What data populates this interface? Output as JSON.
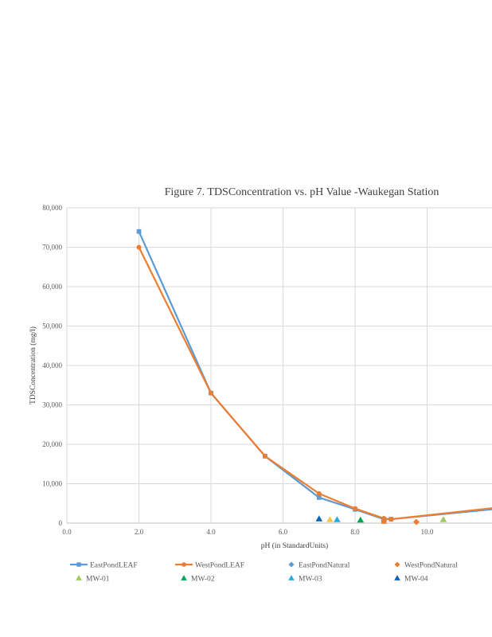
{
  "chart_data": {
    "type": "scatter",
    "title": "Figure 7. TDSConcentration  vs. pH Value -Waukegan  Station",
    "xlabel": "pH (in StandardUnits)",
    "ylabel": "TDSConcentration (mg/l)",
    "xlim": [
      0,
      11.8
    ],
    "ylim": [
      0,
      80000
    ],
    "x_ticks": [
      0,
      2,
      4,
      6,
      8,
      10
    ],
    "x_tick_labels": [
      "0.0",
      "2.0",
      "4.0",
      "6.0",
      "8.0",
      "10.0"
    ],
    "y_ticks": [
      0,
      10000,
      20000,
      30000,
      40000,
      50000,
      60000,
      70000,
      80000
    ],
    "y_tick_labels": [
      "0",
      "10,000",
      "20,000",
      "30,000",
      "40,000",
      "50,000",
      "60,000",
      "70,000",
      "80,000"
    ],
    "grid": true,
    "legend_position": "bottom",
    "series": [
      {
        "name": "EastPondLEAF",
        "style": "line-square",
        "color": "#5B9BD5",
        "points": [
          [
            2.0,
            74000
          ],
          [
            4.0,
            33000
          ],
          [
            5.5,
            17000
          ],
          [
            7.0,
            6500
          ],
          [
            8.0,
            3500
          ],
          [
            8.8,
            1000
          ],
          [
            9.0,
            1000
          ],
          [
            11.8,
            3500
          ]
        ]
      },
      {
        "name": "WestPondLEAF",
        "style": "line-circle",
        "color": "#ED7D31",
        "points": [
          [
            2.0,
            70000
          ],
          [
            4.0,
            33000
          ],
          [
            5.5,
            17000
          ],
          [
            7.0,
            7500
          ],
          [
            8.0,
            3700
          ],
          [
            8.8,
            1200
          ],
          [
            9.0,
            1000
          ],
          [
            11.8,
            3800
          ]
        ]
      },
      {
        "name": "EastPondNatural",
        "style": "diamond",
        "color": "#5B9BD5",
        "points": [
          [
            8.8,
            600
          ]
        ]
      },
      {
        "name": "WestPondNatural",
        "style": "diamond",
        "color": "#ED7D31",
        "points": [
          [
            9.7,
            300
          ]
        ]
      },
      {
        "name": "MW-01",
        "style": "triangle",
        "color": "#9BCB5B",
        "points": [
          [
            10.45,
            900
          ]
        ]
      },
      {
        "name": "MW-02",
        "style": "triangle",
        "color": "#00A651",
        "points": [
          [
            8.15,
            800
          ]
        ]
      },
      {
        "name": "MW-03",
        "style": "triangle",
        "color": "#29ABE2",
        "points": [
          [
            7.5,
            900
          ]
        ]
      },
      {
        "name": "MW-04",
        "style": "triangle",
        "color": "#0E64B0",
        "points": [
          [
            7.0,
            1100
          ]
        ]
      }
    ],
    "extra_markers": [
      {
        "style": "triangle",
        "color": "#F7C548",
        "points": [
          [
            7.3,
            900
          ]
        ]
      },
      {
        "style": "square",
        "color": "#ED7D31",
        "points": [
          [
            8.8,
            500
          ]
        ]
      }
    ]
  }
}
